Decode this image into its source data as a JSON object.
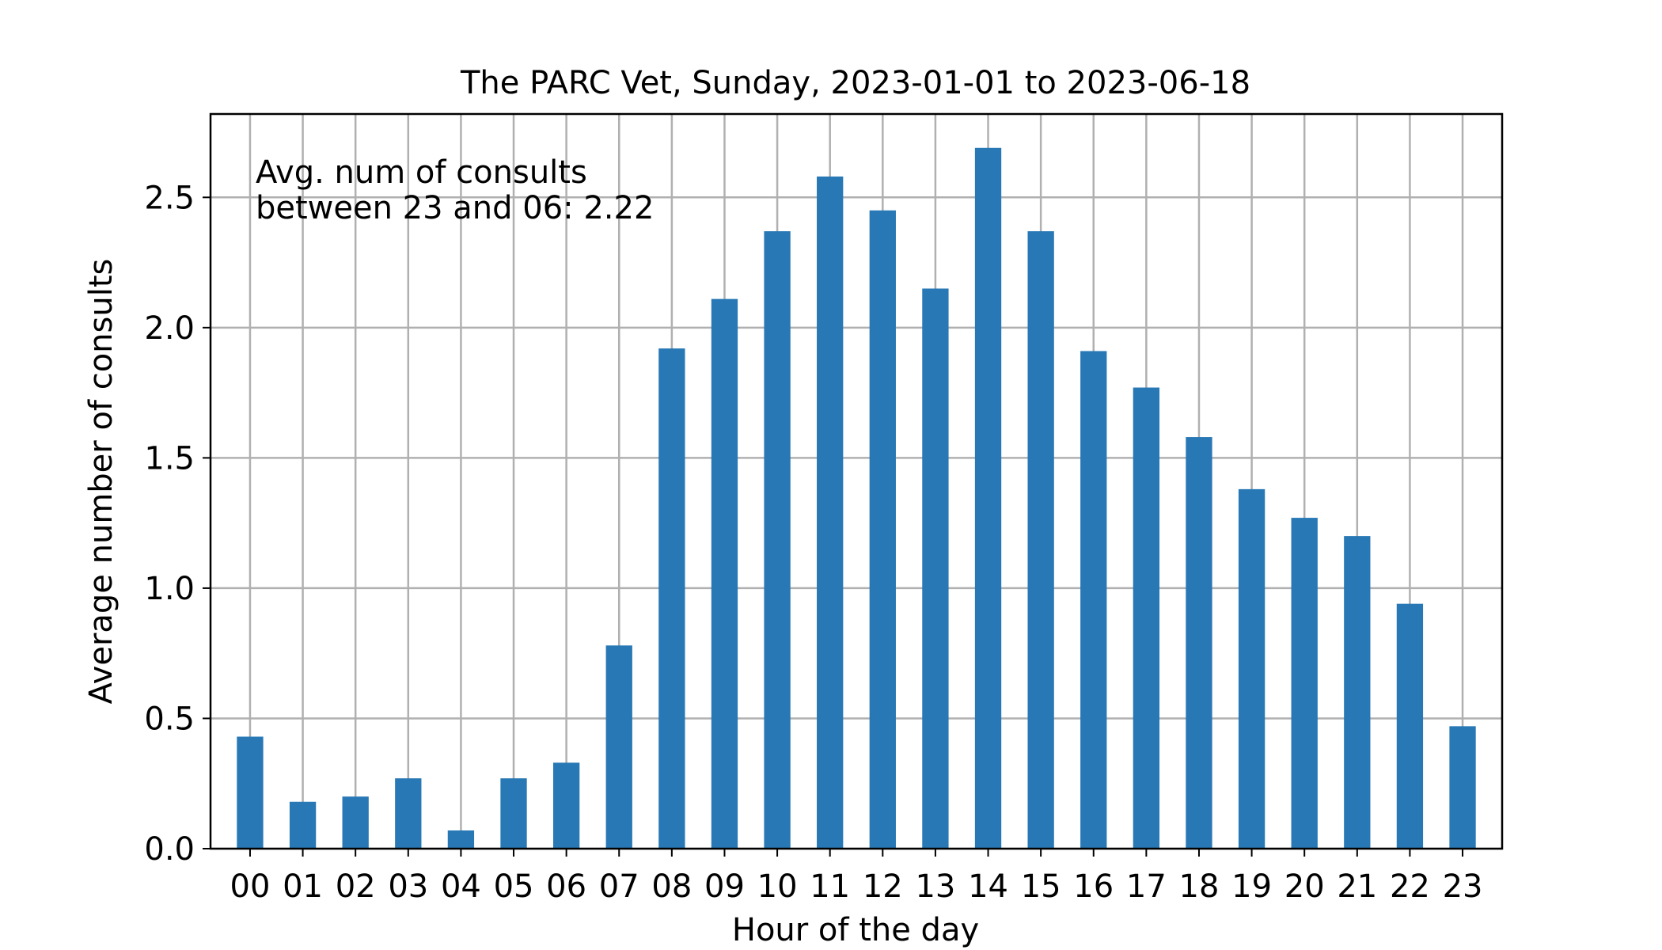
{
  "chart_data": {
    "type": "bar",
    "title": "The PARC Vet, Sunday, 2023-01-01 to 2023-06-18",
    "xlabel": "Hour of the day",
    "ylabel": "Average number of consults",
    "categories": [
      "00",
      "01",
      "02",
      "03",
      "04",
      "05",
      "06",
      "07",
      "08",
      "09",
      "10",
      "11",
      "12",
      "13",
      "14",
      "15",
      "16",
      "17",
      "18",
      "19",
      "20",
      "21",
      "22",
      "23"
    ],
    "values": [
      0.43,
      0.18,
      0.2,
      0.27,
      0.07,
      0.27,
      0.33,
      0.78,
      1.92,
      2.11,
      2.37,
      2.58,
      2.45,
      2.15,
      2.69,
      2.37,
      1.91,
      1.77,
      1.58,
      1.38,
      1.27,
      1.2,
      0.94,
      0.47
    ],
    "ylim": [
      0,
      2.82
    ],
    "yticks": [
      "0.0",
      "0.5",
      "1.0",
      "1.5",
      "2.0",
      "2.5"
    ],
    "grid": true,
    "bar_color": "#2878b5",
    "annotation": [
      "Avg. num of consults",
      "between 23 and 06: 2.22"
    ]
  }
}
